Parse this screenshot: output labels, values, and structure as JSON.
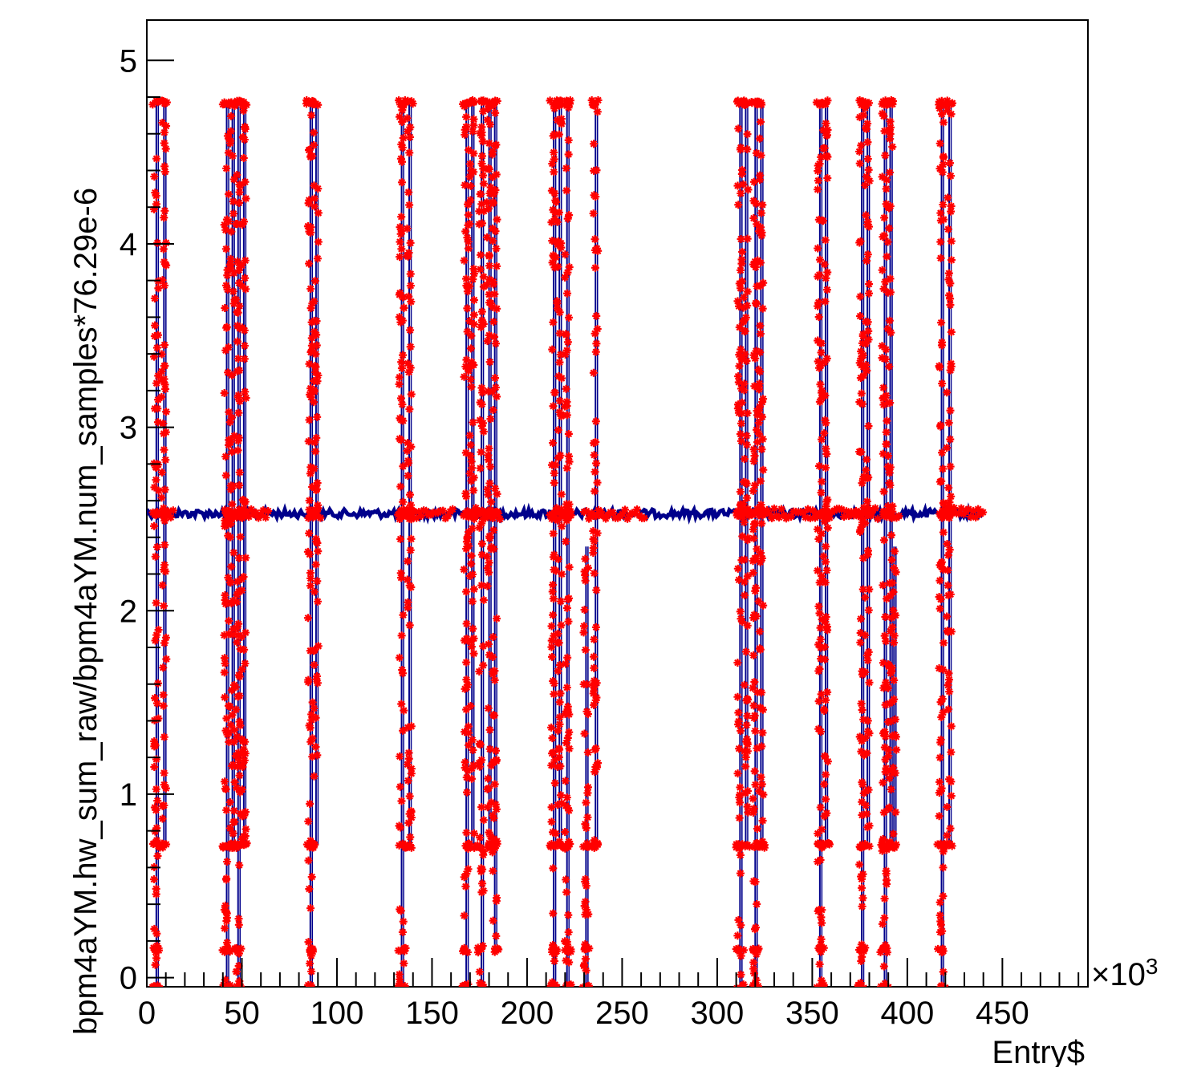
{
  "chart_data": {
    "type": "scatter",
    "xlabel": "Entry$",
    "ylabel": "bpm4aYM.hw_sum_raw/bpm4aYM.num_samples*76.29e-6",
    "x_multiplier": "×10",
    "x_multiplier_exp": "3",
    "xlim": [
      0,
      495
    ],
    "ylim": [
      -0.05,
      5.22
    ],
    "x_ticks": [
      0,
      50,
      100,
      150,
      200,
      250,
      300,
      350,
      400,
      450
    ],
    "x_tick_labels": [
      "0",
      "50",
      "100",
      "150",
      "200",
      "250",
      "300",
      "350",
      "400",
      "450"
    ],
    "y_ticks": [
      0,
      1,
      2,
      3,
      4,
      5
    ],
    "y_tick_labels": [
      "0",
      "1",
      "2",
      "3",
      "4",
      "5"
    ],
    "baseline_value": 2.53,
    "baseline_segments": [
      [
        0,
        440
      ]
    ],
    "line_color": "#00008b",
    "marker_color": "#ff0000",
    "marker_style": "star",
    "bursts": [
      {
        "x": 5,
        "low": -0.05,
        "high": 4.77
      },
      {
        "x": 9,
        "low": 0.72,
        "high": 4.77
      },
      {
        "x": 42,
        "low": -0.05,
        "high": 4.77
      },
      {
        "x": 45,
        "low": 0.72,
        "high": 4.77
      },
      {
        "x": 48,
        "low": -0.05,
        "high": 4.77
      },
      {
        "x": 51,
        "low": 0.72,
        "high": 4.77
      },
      {
        "x": 86,
        "low": -0.05,
        "high": 4.77
      },
      {
        "x": 89,
        "low": 0.72,
        "high": 4.77
      },
      {
        "x": 134,
        "low": -0.05,
        "high": 4.77
      },
      {
        "x": 138,
        "low": 0.72,
        "high": 4.77
      },
      {
        "x": 168,
        "low": -0.05,
        "high": 4.77
      },
      {
        "x": 171,
        "low": 0.72,
        "high": 4.77
      },
      {
        "x": 176,
        "low": -0.05,
        "high": 4.77
      },
      {
        "x": 180,
        "low": 0.72,
        "high": 4.77
      },
      {
        "x": 183,
        "low": 0.15,
        "high": 4.77
      },
      {
        "x": 214,
        "low": -0.05,
        "high": 4.77
      },
      {
        "x": 217,
        "low": 0.72,
        "high": 4.77
      },
      {
        "x": 221,
        "low": -0.05,
        "high": 4.77
      },
      {
        "x": 231,
        "low": -0.05,
        "high": 2.35
      },
      {
        "x": 236,
        "low": 0.72,
        "high": 4.77
      },
      {
        "x": 312,
        "low": -0.05,
        "high": 4.77
      },
      {
        "x": 315,
        "low": 0.72,
        "high": 4.77
      },
      {
        "x": 320,
        "low": -0.05,
        "high": 4.77
      },
      {
        "x": 323,
        "low": 0.72,
        "high": 4.77
      },
      {
        "x": 354,
        "low": -0.05,
        "high": 4.77
      },
      {
        "x": 357,
        "low": 0.72,
        "high": 4.77
      },
      {
        "x": 376,
        "low": -0.05,
        "high": 4.77
      },
      {
        "x": 379,
        "low": 0.72,
        "high": 4.77
      },
      {
        "x": 388,
        "low": -0.05,
        "high": 4.77
      },
      {
        "x": 391,
        "low": 0.72,
        "high": 4.77
      },
      {
        "x": 393,
        "low": 0.72,
        "high": 2.35
      },
      {
        "x": 418,
        "low": -0.05,
        "high": 4.77
      },
      {
        "x": 422,
        "low": 0.72,
        "high": 4.77
      }
    ],
    "red_baseline_regions": [
      [
        5,
        14
      ],
      [
        41,
        64
      ],
      [
        85,
        92
      ],
      [
        133,
        162
      ],
      [
        168,
        186
      ],
      [
        213,
        224
      ],
      [
        230,
        262
      ],
      [
        311,
        385
      ],
      [
        388,
        396
      ],
      [
        417,
        440
      ]
    ],
    "scatter_levels": [
      -0.05,
      0.15,
      0.72,
      2.53,
      4.77
    ]
  }
}
